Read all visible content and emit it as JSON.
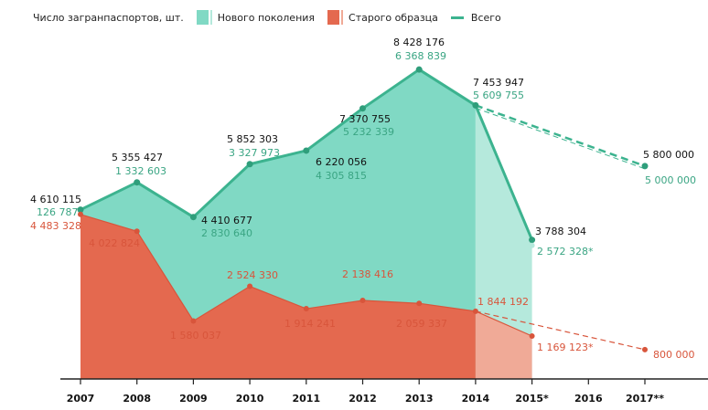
{
  "legend": {
    "title": "Число загранпаспортов,  шт.",
    "new": "Нового поколения",
    "old": "Старого образца",
    "total": "Всего"
  },
  "colors": {
    "new_fill": "#80d9c4",
    "new_fill_light": "#b5e9dc",
    "total_line": "#3cb38f",
    "old_fill": "#e4694f",
    "old_fill_light": "#f0aa97",
    "new_text": "#3aa583",
    "old_text": "#d8553b"
  },
  "chart_data": {
    "type": "area",
    "title": "Число загранпаспортов, шт.",
    "categories": [
      "2007",
      "2008",
      "2009",
      "2010",
      "2011",
      "2012",
      "2013",
      "2014",
      "2015*",
      "2016",
      "2017**"
    ],
    "series": [
      {
        "name": "Всего",
        "values": [
          4610115,
          5355427,
          4410677,
          5852303,
          6220056,
          7370755,
          8428176,
          7453947,
          3788304,
          null,
          5800000
        ],
        "labels": [
          "4 610 115",
          "5 355 427",
          "4 410 677",
          "5 852 303",
          "6 220 056",
          "7 370 755",
          "8 428 176",
          "7 453 947",
          "3 788 304",
          null,
          "5 800 000"
        ]
      },
      {
        "name": "Нового поколения",
        "values": [
          126787,
          1332603,
          2830640,
          3327973,
          4305815,
          5232339,
          6368839,
          5609755,
          2572328,
          null,
          5000000
        ],
        "labels": [
          "126 787",
          "1 332 603",
          "2 830 640",
          "3 327 973",
          "4 305 815",
          "5 232 339",
          "6 368 839",
          "5 609 755",
          "2 572 328*",
          null,
          "5 000 000"
        ]
      },
      {
        "name": "Старого образца",
        "values": [
          4483328,
          4022824,
          1580037,
          2524330,
          1914241,
          2138416,
          2059337,
          1844192,
          1169123,
          null,
          800000
        ],
        "labels": [
          "4 483 328",
          "4 022 824",
          "1 580 037",
          "2 524 330",
          "1 914 241",
          "2 138 416",
          "2 059 337",
          "1 844 192",
          "1 169 123*",
          null,
          "800 000"
        ]
      }
    ],
    "ylim": [
      0,
      8500000
    ],
    "grid": false,
    "legend_position": "top-left"
  }
}
